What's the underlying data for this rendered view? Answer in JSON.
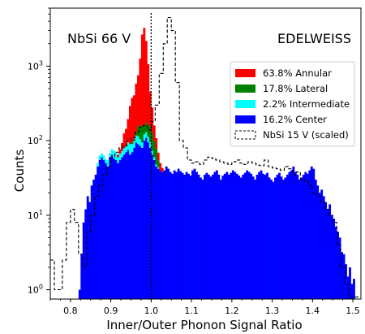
{
  "chart_data": {
    "type": "histogram",
    "xlabel": "Inner/Outer Phonon Signal Ratio",
    "ylabel": "Counts",
    "yscale": "log",
    "xlim": [
      0.75,
      1.52
    ],
    "ylim": [
      0.75,
      6000
    ],
    "xticks": [
      {
        "value": 0.8,
        "label": "0.8"
      },
      {
        "value": 0.9,
        "label": "0.9"
      },
      {
        "value": 1.0,
        "label": "1.0"
      },
      {
        "value": 1.1,
        "label": "1.1"
      },
      {
        "value": 1.2,
        "label": "1.2"
      },
      {
        "value": 1.3,
        "label": "1.3"
      },
      {
        "value": 1.4,
        "label": "1.4"
      },
      {
        "value": 1.5,
        "label": "1.5"
      }
    ],
    "yticks": [
      {
        "value": 1,
        "base": "10",
        "exp": "0"
      },
      {
        "value": 10,
        "base": "10",
        "exp": "1"
      },
      {
        "value": 100,
        "base": "10",
        "exp": "2"
      },
      {
        "value": 1000,
        "base": "10",
        "exp": "3"
      }
    ],
    "annotations": {
      "top_left": "NbSi 66 V",
      "top_right": "EDELWEISS"
    },
    "reference_line_x": 1.0,
    "grid": false,
    "legend_position": "upper-right",
    "bin_start": 0.82,
    "bin_width": 0.005,
    "series": [
      {
        "name": "16.2% Center",
        "color": "#0000ff",
        "style": "stacked-fill",
        "values": [
          1.0,
          3,
          8,
          12,
          18,
          15,
          25,
          30,
          35,
          45,
          55,
          60,
          55,
          50,
          45,
          60,
          65,
          58,
          55,
          50,
          55,
          60,
          65,
          70,
          75,
          65,
          70,
          80,
          95,
          90,
          85,
          80,
          100,
          110,
          95,
          80,
          65,
          55,
          45,
          42,
          40,
          38,
          40,
          45,
          42,
          38,
          36,
          40,
          38,
          42,
          39,
          37,
          35,
          38,
          36,
          34,
          40,
          42,
          38,
          35,
          32,
          30,
          35,
          37,
          35,
          33,
          35,
          38,
          40,
          35,
          30,
          34,
          36,
          38,
          35,
          37,
          40,
          38,
          36,
          34,
          32,
          35,
          37,
          40,
          38,
          36,
          33,
          30,
          35,
          38,
          40,
          36,
          35,
          37,
          32,
          30,
          28,
          32,
          35,
          37,
          33,
          30,
          32,
          35,
          38,
          40,
          45,
          38,
          35,
          30,
          32,
          35,
          38,
          36,
          40,
          45,
          42,
          30,
          25,
          20,
          22,
          18,
          15,
          12,
          14,
          10,
          9,
          7,
          6,
          5,
          3.2,
          3,
          2.2,
          1.5,
          2,
          1.2,
          1.4
        ]
      },
      {
        "name": "2.2% Intermediate",
        "color": "#00ffff",
        "style": "stacked-fill",
        "values": [
          0,
          0,
          0,
          0,
          0,
          0,
          0,
          0,
          0,
          5,
          8,
          7,
          8,
          6,
          10,
          8,
          12,
          15,
          14,
          10,
          12,
          13,
          15,
          14,
          20,
          25,
          20,
          18,
          22,
          25,
          20,
          15,
          22,
          20,
          18,
          15,
          8,
          5,
          3,
          2,
          0,
          0,
          0,
          0,
          0,
          0,
          0,
          0,
          0,
          0,
          0,
          0,
          0,
          0,
          0,
          0,
          0,
          0,
          0,
          0,
          0,
          0,
          0,
          0,
          0,
          0,
          0,
          0,
          0,
          0,
          0,
          0,
          0,
          0,
          0,
          0,
          0,
          0,
          0,
          0,
          0,
          0,
          0,
          0,
          0,
          0,
          0,
          0,
          0,
          0,
          0,
          0,
          0,
          0,
          0,
          0,
          0,
          0,
          0,
          0,
          0,
          0,
          0,
          0,
          0,
          0,
          0,
          0,
          0,
          0,
          0,
          0,
          0,
          0,
          0,
          0,
          0,
          0,
          0,
          0,
          0,
          0,
          0,
          0,
          0,
          0,
          0,
          0,
          0,
          0,
          0,
          0,
          0,
          0,
          0
        ]
      },
      {
        "name": "17.8% Lateral",
        "color": "#008000",
        "style": "stacked-fill",
        "values": [
          0,
          0,
          0,
          0,
          0,
          0,
          0,
          0,
          0,
          0,
          0,
          0,
          0,
          0,
          0,
          0,
          0,
          0,
          0,
          0,
          0,
          0,
          0,
          0,
          0,
          2,
          5,
          8,
          15,
          40,
          60,
          60,
          40,
          45,
          50,
          60,
          55,
          40,
          30,
          10,
          0,
          0,
          0,
          0,
          0,
          0,
          0,
          0,
          0,
          0,
          0,
          0,
          0,
          0,
          0,
          0,
          0,
          0,
          0,
          0,
          0,
          0,
          0,
          0,
          0,
          0,
          0,
          0,
          0,
          0,
          0,
          0,
          0,
          0,
          0,
          0,
          0,
          0,
          0,
          0,
          0,
          0,
          0,
          0,
          0,
          0,
          0,
          0,
          0,
          0,
          0,
          0,
          0,
          0,
          0,
          0,
          0,
          0,
          0,
          0,
          0,
          0,
          0,
          0,
          0,
          0,
          0,
          0,
          0,
          0,
          0,
          0,
          0,
          0,
          0,
          0,
          0,
          0,
          0,
          0,
          0,
          0,
          0,
          0,
          0,
          0,
          0,
          0,
          0,
          0,
          0,
          0,
          0,
          0,
          0
        ]
      },
      {
        "name": "63.8% Annular",
        "color": "#ff0000",
        "style": "stacked-fill",
        "values": [
          0,
          0,
          0,
          0,
          0,
          0,
          0,
          0,
          0,
          0,
          0,
          0,
          0,
          0,
          0,
          0,
          0,
          0,
          0,
          5,
          10,
          20,
          45,
          60,
          100,
          200,
          280,
          300,
          450,
          600,
          1100,
          2500,
          3100,
          2000,
          900,
          300,
          150,
          60,
          30,
          15,
          10,
          5,
          0,
          0,
          0,
          0,
          0,
          0,
          0,
          0,
          0,
          0,
          0,
          0,
          0,
          0,
          0,
          0,
          0,
          0,
          0,
          0,
          0,
          0,
          0,
          0,
          0,
          0,
          0,
          0,
          0,
          0,
          0,
          0,
          0,
          0,
          0,
          0,
          0,
          0,
          0,
          0,
          0,
          0,
          0,
          0,
          0,
          0,
          0,
          0,
          0,
          0,
          0,
          0,
          0,
          0,
          0,
          0,
          0,
          0,
          0,
          0,
          0,
          0,
          0,
          0,
          0,
          0,
          0,
          0,
          0,
          0,
          0,
          0,
          0,
          0,
          0,
          0,
          0,
          0,
          0,
          0,
          0,
          0,
          0,
          0,
          0,
          0,
          0,
          0,
          0,
          0,
          0
        ]
      },
      {
        "name": "NbSi 15 V (scaled)",
        "color": "#000000",
        "style": "dashed-step",
        "x_start": 0.75,
        "values": [
          2.5,
          2.5,
          1.0,
          1.0,
          1.0,
          1.0,
          2.5,
          2.5,
          8,
          8,
          12,
          12,
          8,
          8,
          3,
          3,
          2,
          2,
          6,
          6,
          10,
          10,
          18,
          18,
          25,
          25,
          35,
          35,
          45,
          45,
          60,
          60,
          70,
          70,
          80,
          80,
          85,
          85,
          100,
          100,
          110,
          110,
          130,
          130,
          150,
          150,
          160,
          160,
          140,
          140,
          180,
          180,
          300,
          300,
          800,
          800,
          2000,
          2000,
          4500,
          4500,
          3000,
          3000,
          600,
          600,
          100,
          100,
          80,
          80,
          55,
          55,
          50,
          50,
          52,
          52,
          48,
          48,
          55,
          55,
          60,
          60,
          58,
          58,
          55,
          55,
          52,
          52,
          50,
          50,
          48,
          48,
          52,
          52,
          55,
          55,
          50,
          50,
          48,
          48,
          52,
          52,
          50,
          50,
          47,
          47,
          46,
          46,
          55,
          55,
          45,
          45,
          43,
          43,
          42,
          42,
          40,
          40,
          45,
          45,
          42,
          42,
          35,
          35,
          38,
          38,
          30,
          30,
          28,
          28,
          25,
          25,
          20,
          20,
          18,
          18,
          15,
          15,
          12,
          12,
          10,
          10,
          8,
          8,
          4,
          4,
          2,
          2,
          1.2,
          1.2,
          0.8,
          0.8,
          0.8,
          0.8,
          0.8
        ]
      }
    ]
  }
}
